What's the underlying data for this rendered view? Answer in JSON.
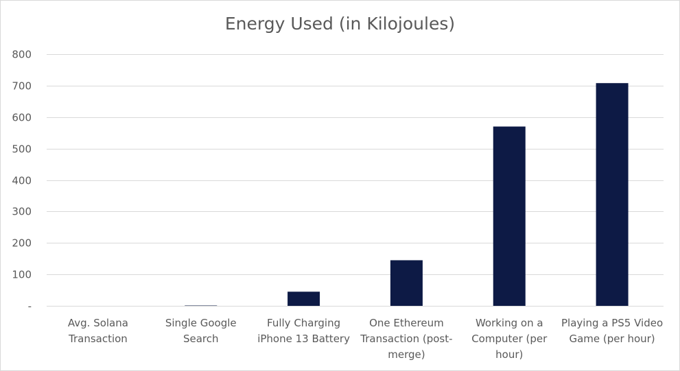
{
  "chart_data": {
    "type": "bar",
    "title": "Energy Used (in Kilojoules)",
    "xlabel": "",
    "ylabel": "",
    "categories": [
      [
        "Avg. Solana",
        "Transaction"
      ],
      [
        "Single Google",
        "Search"
      ],
      [
        "Fully Charging",
        "iPhone 13 Battery"
      ],
      [
        "One Ethereum",
        "Transaction (post-",
        "merge)"
      ],
      [
        "Working on a",
        "Computer (per",
        "hour)"
      ],
      [
        "Playing a PS5 Video",
        "Game (per hour)"
      ]
    ],
    "values": [
      0.002,
      1.08,
      45,
      145,
      570,
      708
    ],
    "ylim": [
      0,
      800
    ],
    "yticks": [
      0,
      100,
      200,
      300,
      400,
      500,
      600,
      700,
      800
    ],
    "ytick_labels": [
      "-",
      "100",
      "200",
      "300",
      "400",
      "500",
      "600",
      "700",
      "800"
    ],
    "grid": true,
    "legend": "none",
    "bar_color": "#0d1a45",
    "grid_color": "#d9d9d9"
  }
}
